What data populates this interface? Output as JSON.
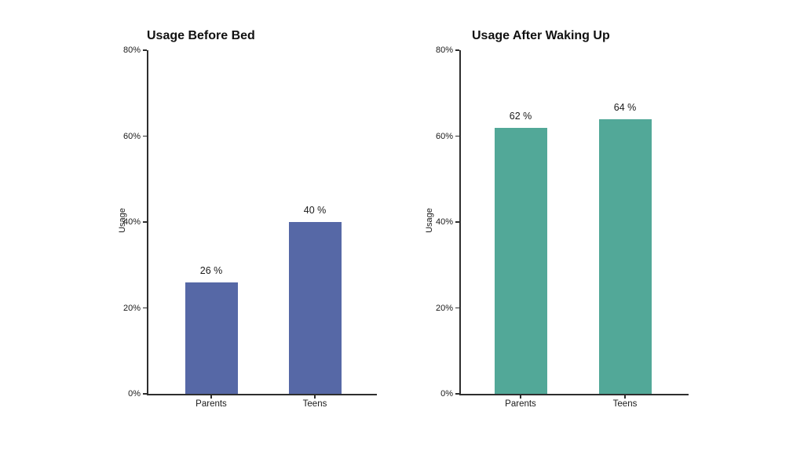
{
  "page": {
    "background_color": "#ffffff",
    "text_color": "#1a1a1a",
    "axis_color": "#2e2e2e"
  },
  "chart_data": [
    {
      "type": "bar",
      "title": "Usage Before Bed",
      "categories": [
        "Parents",
        "Teens"
      ],
      "values": [
        26,
        40
      ],
      "value_labels": [
        "26 %",
        "40 %"
      ],
      "xlabel": "",
      "ylabel": "Usage",
      "ylim": [
        0,
        80
      ],
      "yticks": [
        0,
        20,
        40,
        60,
        80
      ],
      "ytick_labels": [
        "0%",
        "20%",
        "40%",
        "60%",
        "80%"
      ],
      "bar_color": "#5668a6",
      "grid": false,
      "legend": "none"
    },
    {
      "type": "bar",
      "title": "Usage After Waking Up",
      "categories": [
        "Parents",
        "Teens"
      ],
      "values": [
        62,
        64
      ],
      "value_labels": [
        "62 %",
        "64 %"
      ],
      "xlabel": "",
      "ylabel": "Usage",
      "ylim": [
        0,
        80
      ],
      "yticks": [
        0,
        20,
        40,
        60,
        80
      ],
      "ytick_labels": [
        "0%",
        "20%",
        "40%",
        "60%",
        "80%"
      ],
      "bar_color": "#52a898",
      "grid": false,
      "legend": "none"
    }
  ]
}
